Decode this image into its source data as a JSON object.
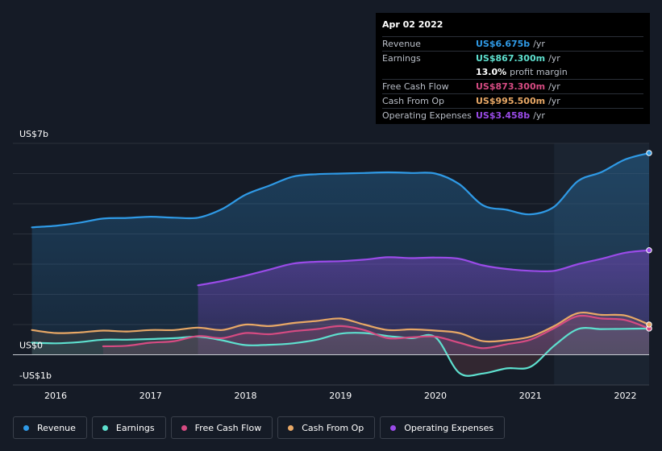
{
  "tooltip": {
    "date": "Apr 02 2022",
    "rows": {
      "revenue": {
        "label": "Revenue",
        "value": "US$6.675b",
        "unit": "/yr",
        "color": "#2f9ae6"
      },
      "earnings": {
        "label": "Earnings",
        "value": "US$867.300m",
        "unit": "/yr",
        "color": "#5ee0cf"
      },
      "margin": {
        "value": "13.0%",
        "suffix": "profit margin"
      },
      "fcf": {
        "label": "Free Cash Flow",
        "value": "US$873.300m",
        "unit": "/yr",
        "color": "#d64b82"
      },
      "cfo": {
        "label": "Cash From Op",
        "value": "US$995.500m",
        "unit": "/yr",
        "color": "#e8a866"
      },
      "opex": {
        "label": "Operating Expenses",
        "value": "US$3.458b",
        "unit": "/yr",
        "color": "#9a4be8"
      }
    }
  },
  "legend": [
    {
      "label": "Revenue",
      "color": "#2f9ae6"
    },
    {
      "label": "Earnings",
      "color": "#5ee0cf"
    },
    {
      "label": "Free Cash Flow",
      "color": "#d64b82"
    },
    {
      "label": "Cash From Op",
      "color": "#e8a866"
    },
    {
      "label": "Operating Expenses",
      "color": "#9a4be8"
    }
  ],
  "chart_data": {
    "type": "area",
    "y_unit": "US$ b",
    "ylim": [
      -1,
      7
    ],
    "y_tick_labels": [
      {
        "value": 7,
        "label": "US$7b"
      },
      {
        "value": 0,
        "label": "US$0"
      },
      {
        "value": -1,
        "label": "-US$1b"
      }
    ],
    "x_tick_labels": [
      "2016",
      "2017",
      "2018",
      "2019",
      "2020",
      "2021",
      "2022"
    ],
    "x_ticks": [
      2016,
      2017,
      2018,
      2019,
      2020,
      2021,
      2022
    ],
    "xlim": [
      2015.55,
      2022.25
    ],
    "highlight_start": 2021.25,
    "series": [
      {
        "key": "opex",
        "name": "Operating Expenses",
        "color": "#9a4be8",
        "x": [
          2017.5,
          2017.75,
          2018.0,
          2018.25,
          2018.5,
          2018.75,
          2019.0,
          2019.25,
          2019.5,
          2019.75,
          2020.0,
          2020.25,
          2020.5,
          2020.75,
          2021.0,
          2021.25,
          2021.5,
          2021.75,
          2022.0,
          2022.25
        ],
        "y": [
          2.3,
          2.44,
          2.62,
          2.82,
          3.02,
          3.08,
          3.1,
          3.15,
          3.23,
          3.2,
          3.22,
          3.18,
          2.96,
          2.84,
          2.78,
          2.78,
          3.0,
          3.18,
          3.38,
          3.46
        ]
      },
      {
        "key": "revenue",
        "name": "Revenue",
        "color": "#2f9ae6",
        "x": [
          2015.75,
          2016.0,
          2016.25,
          2016.5,
          2016.75,
          2017.0,
          2017.25,
          2017.5,
          2017.75,
          2018.0,
          2018.25,
          2018.5,
          2018.75,
          2019.0,
          2019.25,
          2019.5,
          2019.75,
          2020.0,
          2020.25,
          2020.5,
          2020.75,
          2021.0,
          2021.25,
          2021.5,
          2021.75,
          2022.0,
          2022.25
        ],
        "y": [
          4.22,
          4.27,
          4.37,
          4.51,
          4.53,
          4.57,
          4.54,
          4.54,
          4.82,
          5.3,
          5.6,
          5.9,
          5.98,
          6.0,
          6.02,
          6.04,
          6.02,
          6.0,
          5.65,
          4.95,
          4.8,
          4.65,
          4.9,
          5.75,
          6.05,
          6.47,
          6.68
        ]
      },
      {
        "key": "cfo",
        "name": "Cash From Op",
        "color": "#e8a866",
        "x": [
          2015.75,
          2016.0,
          2016.25,
          2016.5,
          2016.75,
          2017.0,
          2017.25,
          2017.5,
          2017.75,
          2018.0,
          2018.25,
          2018.5,
          2018.75,
          2019.0,
          2019.25,
          2019.5,
          2019.75,
          2020.0,
          2020.25,
          2020.5,
          2020.75,
          2021.0,
          2021.25,
          2021.5,
          2021.75,
          2022.0,
          2022.25
        ],
        "y": [
          0.82,
          0.72,
          0.74,
          0.8,
          0.77,
          0.82,
          0.82,
          0.9,
          0.82,
          1.0,
          0.95,
          1.05,
          1.12,
          1.2,
          1.0,
          0.82,
          0.84,
          0.8,
          0.72,
          0.45,
          0.48,
          0.6,
          0.95,
          1.38,
          1.32,
          1.3,
          1.0
        ]
      },
      {
        "key": "fcf",
        "name": "Free Cash Flow",
        "color": "#d64b82",
        "x": [
          2016.5,
          2016.75,
          2017.0,
          2017.25,
          2017.5,
          2017.75,
          2018.0,
          2018.25,
          2018.5,
          2018.75,
          2019.0,
          2019.25,
          2019.5,
          2019.75,
          2020.0,
          2020.25,
          2020.5,
          2020.75,
          2021.0,
          2021.25,
          2021.5,
          2021.75,
          2022.0,
          2022.25
        ],
        "y": [
          0.28,
          0.3,
          0.4,
          0.45,
          0.62,
          0.55,
          0.72,
          0.68,
          0.78,
          0.85,
          0.95,
          0.82,
          0.55,
          0.58,
          0.6,
          0.4,
          0.22,
          0.35,
          0.5,
          0.88,
          1.28,
          1.2,
          1.15,
          0.87
        ]
      },
      {
        "key": "earnings",
        "name": "Earnings",
        "color": "#5ee0cf",
        "x": [
          2015.75,
          2016.0,
          2016.25,
          2016.5,
          2016.75,
          2017.0,
          2017.25,
          2017.5,
          2017.75,
          2018.0,
          2018.25,
          2018.5,
          2018.75,
          2019.0,
          2019.25,
          2019.5,
          2019.75,
          2020.0,
          2020.25,
          2020.5,
          2020.75,
          2021.0,
          2021.25,
          2021.5,
          2021.75,
          2022.0,
          2022.25
        ],
        "y": [
          0.4,
          0.38,
          0.42,
          0.5,
          0.5,
          0.52,
          0.55,
          0.6,
          0.48,
          0.32,
          0.33,
          0.38,
          0.5,
          0.7,
          0.72,
          0.62,
          0.55,
          0.58,
          -0.6,
          -0.62,
          -0.45,
          -0.4,
          0.3,
          0.85,
          0.85,
          0.86,
          0.87
        ]
      }
    ]
  }
}
